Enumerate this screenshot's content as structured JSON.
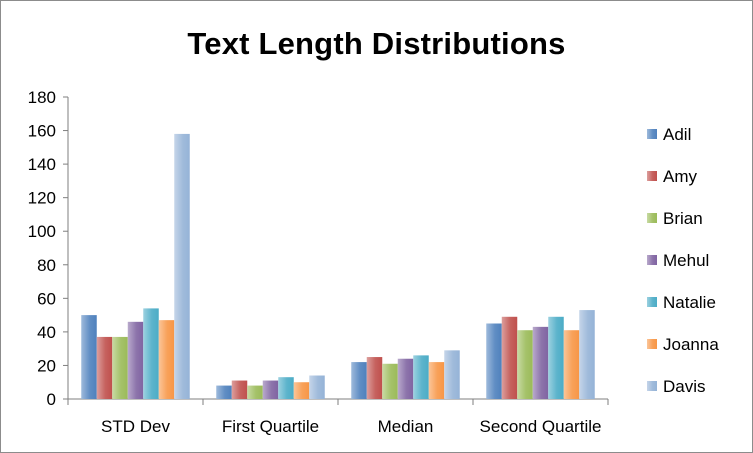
{
  "chart_data": {
    "type": "bar",
    "title": "Text Length Distributions",
    "xlabel": "",
    "ylabel": "",
    "ylim": [
      0,
      180
    ],
    "yticks": [
      0,
      20,
      40,
      60,
      80,
      100,
      120,
      140,
      160,
      180
    ],
    "categories": [
      "STD Dev",
      "First Quartile",
      "Median",
      "Second Quartile"
    ],
    "grid": false,
    "legend_position": "right",
    "series": [
      {
        "name": "Adil",
        "color": "#4f81bd",
        "values": [
          50,
          8,
          22,
          45
        ]
      },
      {
        "name": "Amy",
        "color": "#c0504d",
        "values": [
          37,
          11,
          25,
          49
        ]
      },
      {
        "name": "Brian",
        "color": "#9bbb59",
        "values": [
          37,
          8,
          21,
          41
        ]
      },
      {
        "name": "Mehul",
        "color": "#8064a2",
        "values": [
          46,
          11,
          24,
          43
        ]
      },
      {
        "name": "Natalie",
        "color": "#4bacc6",
        "values": [
          54,
          13,
          26,
          49
        ]
      },
      {
        "name": "Joanna",
        "color": "#f79646",
        "values": [
          47,
          10,
          22,
          41
        ]
      },
      {
        "name": "Davis",
        "color": "#95b3d7",
        "values": [
          158,
          14,
          29,
          53
        ]
      }
    ]
  }
}
